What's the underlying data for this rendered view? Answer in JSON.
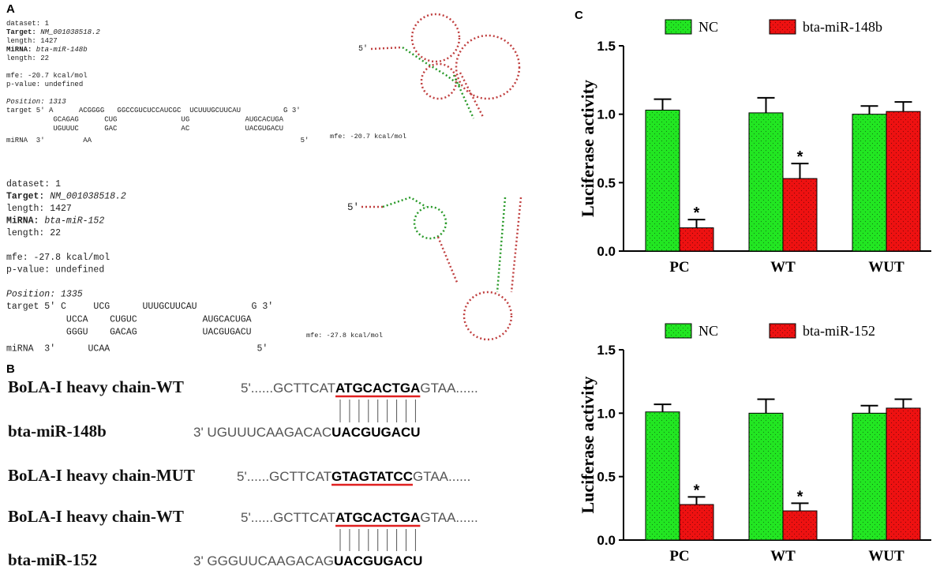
{
  "panel_labels": [
    "A",
    "B",
    "C"
  ],
  "panel_a": [
    {
      "dataset": "dataset: 1",
      "target_label": "Target:",
      "target": "NM_001038518.2",
      "target_length": "length: 1427",
      "mirna_label": "MiRNA:",
      "mirna": "bta-miR-148b",
      "mirna_length": "length: 22",
      "mfe": "mfe: -20.7 kcal/mol",
      "p_value": "p-value: undefined",
      "position": "Position: 1313",
      "alignment": [
        "target 5' A      ACGGGG   GGCCGUCUCCAUCGC  UCUUUGCUUCAU          G 3'",
        "           GCAGAG      CUG               UG             AUGCACUGA",
        "           UGUUUC      GAC               AC             UACGUGACU",
        "miRNA  3'         AA                                                 5'"
      ],
      "structure_five_prime": "5'",
      "structure_mfe": "mfe: -20.7 kcal/mol"
    },
    {
      "dataset": "dataset: 1",
      "target_label": "Target:",
      "target": "NM_001038518.2",
      "target_length": "length: 1427",
      "mirna_label": "MiRNA:",
      "mirna": "bta-miR-152",
      "mirna_length": "length: 22",
      "mfe": "mfe: -27.8 kcal/mol",
      "p_value": "p-value: undefined",
      "position": "Position: 1335",
      "alignment": [
        "target 5' C     UCG      UUUGCUUCAU          G 3'",
        "           UCCA    CUGUC            AUGCACUGA",
        "           GGGU    GACAG            UACGUGACU",
        "miRNA  3'      UCAA                           5'"
      ],
      "structure_five_prime": "5'",
      "structure_mfe": "mfe: -27.8 kcal/mol"
    }
  ],
  "panel_b": [
    {
      "label": "BoLA-I heavy chain-WT",
      "prefix": "5'......GCTTCAT",
      "site": "ATGCACTGA",
      "suffix": "GTAA......"
    },
    {
      "label": "bta-miR-148b",
      "prefix": "3' UGUUUCAAGACAC",
      "site": "UACGUGACU"
    },
    {
      "label": "BoLA-I heavy chain-MUT",
      "prefix": "5'......GCTTCAT",
      "site": "GTAGTATCC",
      "suffix": "GTAA......"
    },
    {
      "label": "BoLA-I heavy chain-WT",
      "prefix": "5'......GCTTCAT",
      "site": "ATGCACTGA",
      "suffix": "GTAA......"
    },
    {
      "label": "bta-miR-152",
      "prefix": "3' GGGUUCAAGACAG",
      "site": "UACGUGACU"
    }
  ],
  "chart_data": [
    {
      "type": "bar",
      "ylabel": "Luciferase activity",
      "categories": [
        "PC",
        "WT",
        "WUT"
      ],
      "series": [
        {
          "name": "NC",
          "color": "#22e622",
          "values": [
            1.03,
            1.01,
            1.0
          ],
          "errors": [
            0.08,
            0.11,
            0.06
          ]
        },
        {
          "name": "bta-miR-148b",
          "color": "#ee1111",
          "values": [
            0.17,
            0.53,
            1.02
          ],
          "errors": [
            0.06,
            0.11,
            0.07
          ],
          "significance": [
            "*",
            "*",
            null
          ]
        }
      ],
      "ylim": [
        0,
        1.5
      ],
      "yticks": [
        {
          "value": 0,
          "label": "0.0"
        },
        {
          "value": 0.5,
          "label": "0.5"
        },
        {
          "value": 1,
          "label": "1.0"
        },
        {
          "value": 1.5,
          "label": "1.5"
        }
      ],
      "legend": "top"
    },
    {
      "type": "bar",
      "ylabel": "Luciferase activity",
      "categories": [
        "PC",
        "WT",
        "WUT"
      ],
      "series": [
        {
          "name": "NC",
          "color": "#22e622",
          "values": [
            1.01,
            1.0,
            1.0
          ],
          "errors": [
            0.06,
            0.11,
            0.06
          ]
        },
        {
          "name": "bta-miR-152",
          "color": "#ee1111",
          "values": [
            0.28,
            0.23,
            1.04
          ],
          "errors": [
            0.06,
            0.06,
            0.07
          ],
          "significance": [
            "*",
            "*",
            null
          ]
        }
      ],
      "ylim": [
        0,
        1.5
      ],
      "yticks": [
        {
          "value": 0,
          "label": "0.0"
        },
        {
          "value": 0.5,
          "label": "0.5"
        },
        {
          "value": 1,
          "label": "1.0"
        },
        {
          "value": 1.5,
          "label": "1.5"
        }
      ],
      "legend": "top"
    }
  ]
}
